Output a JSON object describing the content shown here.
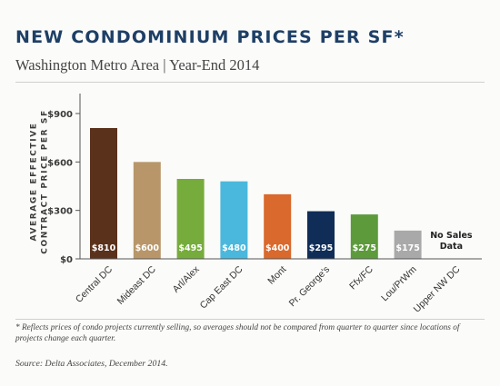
{
  "header": {
    "title": "NEW CONDOMINIUM PRICES PER SF*",
    "subtitle": "Washington Metro Area  |  Year-End 2014"
  },
  "footnote": "* Reflects prices of condo projects currently selling, so averages should not be compared from quarter to quarter since locations of projects change each quarter.",
  "source": "Source: Delta Associates, December 2014.",
  "chart_data": {
    "type": "bar",
    "ylabel": "AVERAGE EFFECTIVE CONTRACT PRICE PER SF",
    "ylim": [
      0,
      900
    ],
    "yticks": [
      0,
      300,
      600,
      900
    ],
    "ytick_labels": [
      "$0",
      "$300",
      "$600",
      "$900"
    ],
    "grid": false,
    "categories": [
      "Central DC",
      "Mideast DC",
      "Arl/Alex",
      "Cap East DC",
      "Mont",
      "Pr. George's",
      "Ffx/FC",
      "Lou/PrWm",
      "Upper NW DC"
    ],
    "values": [
      810,
      600,
      495,
      480,
      400,
      295,
      275,
      175,
      null
    ],
    "value_labels": [
      "$810",
      "$600",
      "$495",
      "$480",
      "$400",
      "$295",
      "$275",
      "$175",
      ""
    ],
    "colors": [
      "#5a311b",
      "#b8966a",
      "#76ac3b",
      "#4ab8dc",
      "#d9692c",
      "#0f2d57",
      "#5c9a3c",
      "#a9a9a9",
      ""
    ],
    "annotations": [
      {
        "category": "Upper NW DC",
        "text_lines": [
          "No Sales",
          "Data"
        ]
      }
    ]
  }
}
